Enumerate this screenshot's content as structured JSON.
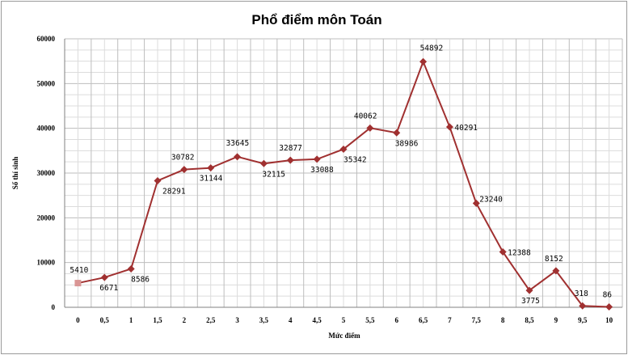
{
  "chart_data": {
    "type": "line",
    "title": "Phổ điểm môn Toán",
    "xlabel": "Mức điểm",
    "ylabel": "Số thí sinh",
    "ylim": [
      0,
      60000
    ],
    "yticks": [
      "0",
      "10000",
      "20000",
      "30000",
      "40000",
      "50000",
      "60000"
    ],
    "categories": [
      "0",
      "0.5",
      "1",
      "1.5",
      "2",
      "2.5",
      "3",
      "3.5",
      "4",
      "4.5",
      "5",
      "5.5",
      "6",
      "6.5",
      "7",
      "7.5",
      "8",
      "8.5",
      "9",
      "9.5",
      "10"
    ],
    "values": [
      5410,
      6671,
      8586,
      28291,
      30782,
      31144,
      33645,
      32115,
      32877,
      33088,
      35342,
      40062,
      38986,
      54892,
      40291,
      23240,
      12388,
      3775,
      8152,
      318,
      86
    ],
    "labels": [
      "5410",
      "6671",
      "8586",
      "28291",
      "30782",
      "31144",
      "33645",
      "32115",
      "32877",
      "33088",
      "35342",
      "40062",
      "38986",
      "54892",
      "40291",
      "23240",
      "12388",
      "3775",
      "8152",
      "318",
      "86"
    ],
    "grid": true,
    "legend": "none",
    "line_color": "#a03030",
    "first_marker_color": "#d99594"
  }
}
